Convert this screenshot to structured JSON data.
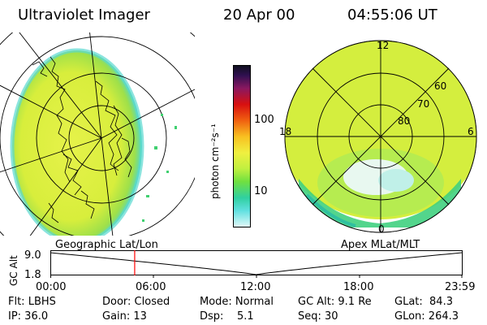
{
  "header": {
    "title": "Ultraviolet Imager",
    "date": "20 Apr 00",
    "time": "04:55:06 UT"
  },
  "colorbar": {
    "unit_label": "photon cm⁻²s⁻¹",
    "ticks": [
      "100",
      "10"
    ]
  },
  "polar_plot": {
    "mlt_labels": {
      "top": "12",
      "left": "18",
      "right": "6",
      "bottom": "0"
    },
    "lat_labels": [
      "60",
      "70",
      "80"
    ]
  },
  "projection_labels": {
    "left": "Geographic Lat/Lon",
    "right": "Apex MLat/MLT"
  },
  "altitude_plot": {
    "ylabel": "GC Alt",
    "yticks": [
      "9.0",
      "1.8"
    ],
    "xticks": [
      "00:00",
      "06:00",
      "12:00",
      "18:00",
      "23:59"
    ],
    "marker_time_hours": 4.92
  },
  "info": {
    "filter": "Flt: LBHS",
    "ip": "IP: 36.0",
    "door": "Door: Closed",
    "gain": "Gain: 13",
    "mode": "Mode: Normal",
    "dsp": "Dsp:    5.1",
    "gc_alt": "GC Alt: 9.1 Re",
    "seq": "Seq: 30",
    "glat": "GLat:  84.3",
    "glon": "GLon: 264.3"
  },
  "colors": {
    "marker": "#ff0000",
    "aurora_main": "#d8f040",
    "aurora_green": "#40d040"
  }
}
